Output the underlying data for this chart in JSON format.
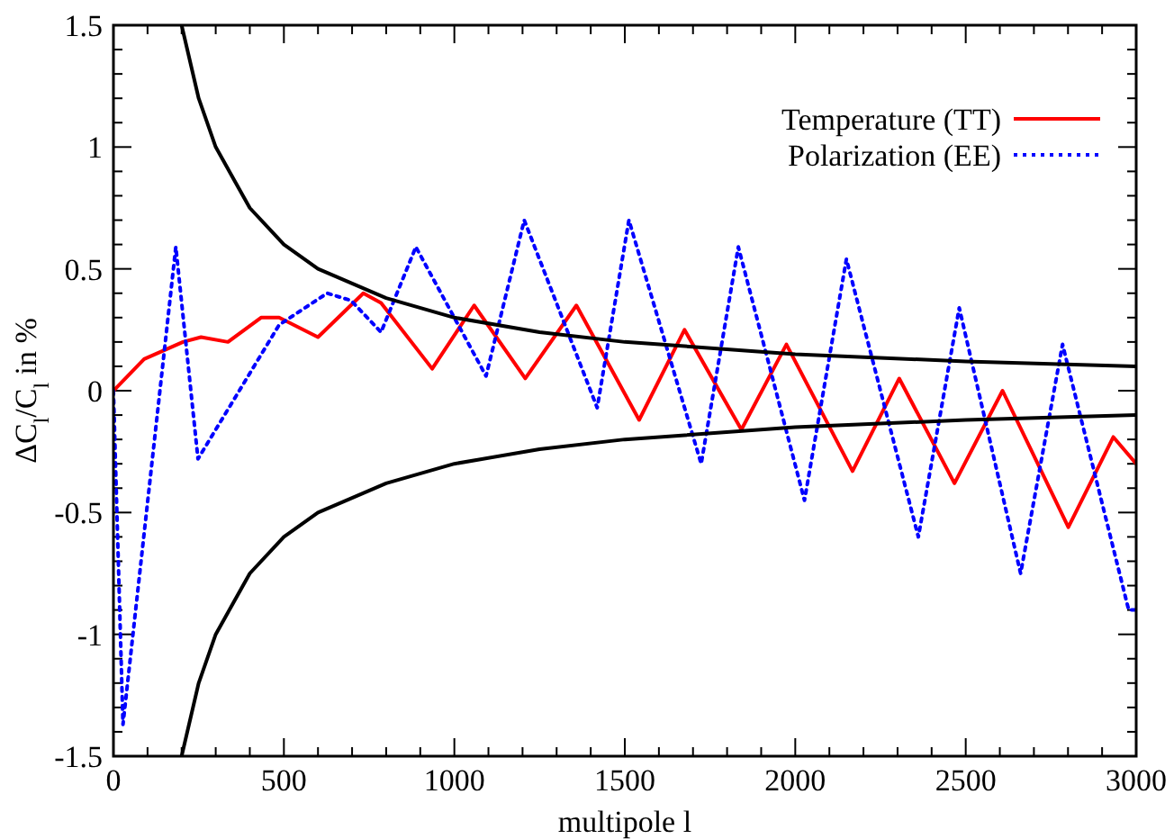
{
  "chart_data": {
    "type": "line",
    "xlabel": "multipole l",
    "ylabel": "ΔC$_{l}$/C$_{l}$ in %",
    "xlim": [
      0,
      3000
    ],
    "ylim": [
      -1.5,
      1.5
    ],
    "xticks": [
      0,
      {
        "value": 100,
        "label": null
      },
      {
        "value": 200,
        "label": null
      },
      {
        "value": 300,
        "label": null
      },
      {
        "value": 400,
        "label": null
      },
      500,
      {
        "value": 600,
        "label": null
      },
      {
        "value": 700,
        "label": null
      },
      {
        "value": 800,
        "label": null
      },
      {
        "value": 900,
        "label": null
      },
      1000,
      {
        "value": 1100,
        "label": null
      },
      {
        "value": 1200,
        "label": null
      },
      {
        "value": 1300,
        "label": null
      },
      {
        "value": 1400,
        "label": null
      },
      1500,
      {
        "value": 1600,
        "label": null
      },
      {
        "value": 1700,
        "label": null
      },
      {
        "value": 1800,
        "label": null
      },
      {
        "value": 1900,
        "label": null
      },
      2000,
      {
        "value": 2100,
        "label": null
      },
      {
        "value": 2200,
        "label": null
      },
      {
        "value": 2300,
        "label": null
      },
      {
        "value": 2400,
        "label": null
      },
      2500,
      {
        "value": 2600,
        "label": null
      },
      {
        "value": 2700,
        "label": null
      },
      {
        "value": 2800,
        "label": null
      },
      {
        "value": 2900,
        "label": null
      },
      3000
    ],
    "yticks": [
      -1.5,
      {
        "value": -1.4,
        "label": null
      },
      {
        "value": -1.3,
        "label": null
      },
      {
        "value": -1.2,
        "label": null
      },
      {
        "value": -1.1,
        "label": null
      },
      -1,
      {
        "value": -0.9,
        "label": null
      },
      {
        "value": -0.8,
        "label": null
      },
      {
        "value": -0.7,
        "label": null
      },
      {
        "value": -0.6,
        "label": null
      },
      -0.5,
      {
        "value": -0.4,
        "label": null
      },
      {
        "value": -0.3,
        "label": null
      },
      {
        "value": -0.2,
        "label": null
      },
      {
        "value": -0.1,
        "label": null
      },
      0,
      {
        "value": 0.1,
        "label": null
      },
      {
        "value": 0.2,
        "label": null
      },
      {
        "value": 0.3,
        "label": null
      },
      {
        "value": 0.4,
        "label": null
      },
      0.5,
      {
        "value": 0.6,
        "label": null
      },
      {
        "value": 0.7,
        "label": null
      },
      {
        "value": 0.8,
        "label": null
      },
      {
        "value": 0.9,
        "label": null
      },
      1,
      {
        "value": 1.1,
        "label": null
      },
      {
        "value": 1.2,
        "label": null
      },
      {
        "value": 1.3,
        "label": null
      },
      {
        "value": 1.4,
        "label": null
      },
      1.5
    ],
    "grid": false,
    "legend": "top right",
    "series": [
      {
        "name": "Temperature (TT)",
        "color": "#ff0000",
        "line_style": "solid",
        "x": [
          0,
          90,
          204,
          257,
          336,
          433,
          486,
          600,
          733,
          785,
          935,
          1058,
          1208,
          1358,
          1542,
          1675,
          1842,
          1974,
          2168,
          2305,
          2467,
          2608,
          2801,
          2933,
          3000
        ],
        "values": [
          0,
          0.13,
          0.2,
          0.22,
          0.2,
          0.3,
          0.3,
          0.22,
          0.4,
          0.36,
          0.09,
          0.35,
          0.05,
          0.35,
          -0.12,
          0.25,
          -0.16,
          0.19,
          -0.33,
          0.05,
          -0.38,
          0.0,
          -0.56,
          -0.19,
          -0.3
        ]
      },
      {
        "name": "Polarization (EE)",
        "color": "#0000ff",
        "line_style": "dotted",
        "x": [
          0,
          28,
          183,
          248,
          486,
          627,
          697,
          785,
          887,
          1093,
          1205,
          1419,
          1512,
          1724,
          1833,
          2027,
          2150,
          2361,
          2481,
          2661,
          2784,
          2978,
          3000
        ],
        "values": [
          0,
          -1.37,
          0.59,
          -0.28,
          0.27,
          0.4,
          0.37,
          0.24,
          0.59,
          0.06,
          0.7,
          -0.07,
          0.7,
          -0.3,
          0.59,
          -0.45,
          0.54,
          -0.6,
          0.34,
          -0.75,
          0.19,
          -0.9,
          -0.9
        ]
      },
      {
        "color": "#000000",
        "line_style": "solid",
        "x": [
          200,
          250,
          300,
          400,
          500,
          600,
          800,
          1000,
          1250,
          1500,
          2000,
          2500,
          3000
        ],
        "values": [
          1.5,
          1.2,
          1.0,
          0.75,
          0.6,
          0.5,
          0.38,
          0.3,
          0.24,
          0.2,
          0.15,
          0.12,
          0.1
        ]
      },
      {
        "color": "#000000",
        "line_style": "solid",
        "x": [
          200,
          250,
          300,
          400,
          500,
          600,
          800,
          1000,
          1250,
          1500,
          2000,
          2500,
          3000
        ],
        "values": [
          -1.5,
          -1.2,
          -1.0,
          -0.75,
          -0.6,
          -0.5,
          -0.38,
          -0.3,
          -0.24,
          -0.2,
          -0.15,
          -0.12,
          -0.1
        ]
      }
    ]
  }
}
